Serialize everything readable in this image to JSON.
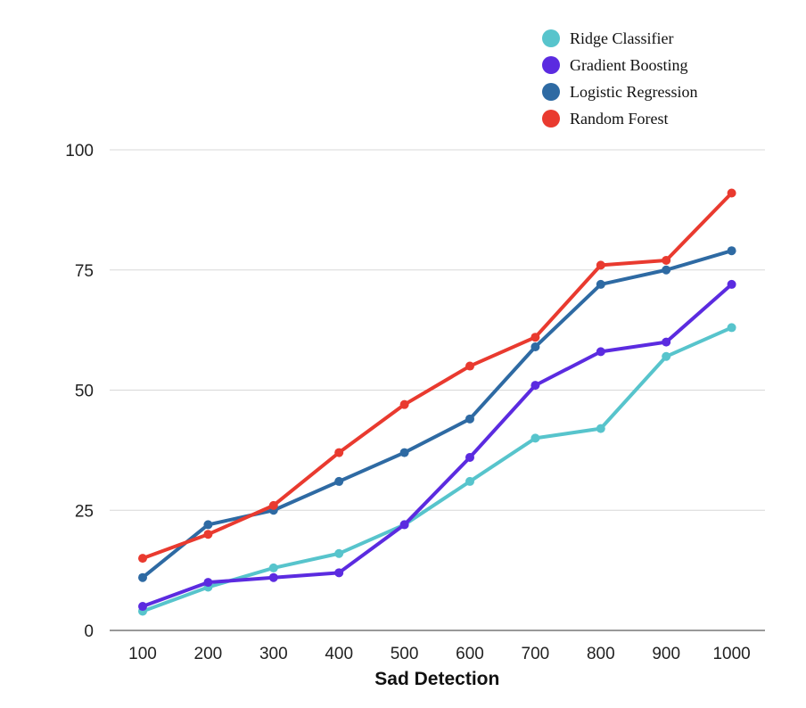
{
  "chart_data": {
    "type": "line",
    "title": "",
    "xlabel": "Sad Detection",
    "ylabel": "",
    "x": [
      100,
      200,
      300,
      400,
      500,
      600,
      700,
      800,
      900,
      1000
    ],
    "x_tick_labels": [
      "100",
      "200",
      "300",
      "400",
      "500",
      "600",
      "700",
      "800",
      "900",
      "1000"
    ],
    "ylim": [
      0,
      100
    ],
    "y_ticks": [
      0,
      25,
      50,
      75,
      100
    ],
    "y_tick_labels": [
      "0",
      "25",
      "50",
      "75",
      "100"
    ],
    "grid": true,
    "legend_position": "top-right",
    "series": [
      {
        "name": "Ridge Classifier",
        "color": "#57c4cc",
        "values": [
          4,
          9,
          13,
          16,
          22,
          31,
          40,
          42,
          57,
          63
        ]
      },
      {
        "name": "Gradient Boosting",
        "color": "#5b2be0",
        "values": [
          5,
          10,
          11,
          12,
          22,
          36,
          51,
          58,
          60,
          72
        ]
      },
      {
        "name": "Logistic Regression",
        "color": "#2e6aa3",
        "values": [
          11,
          22,
          25,
          31,
          37,
          44,
          59,
          72,
          75,
          79
        ]
      },
      {
        "name": "Random Forest",
        "color": "#e93a2f",
        "values": [
          15,
          20,
          26,
          37,
          47,
          55,
          61,
          76,
          77,
          91
        ]
      }
    ]
  }
}
